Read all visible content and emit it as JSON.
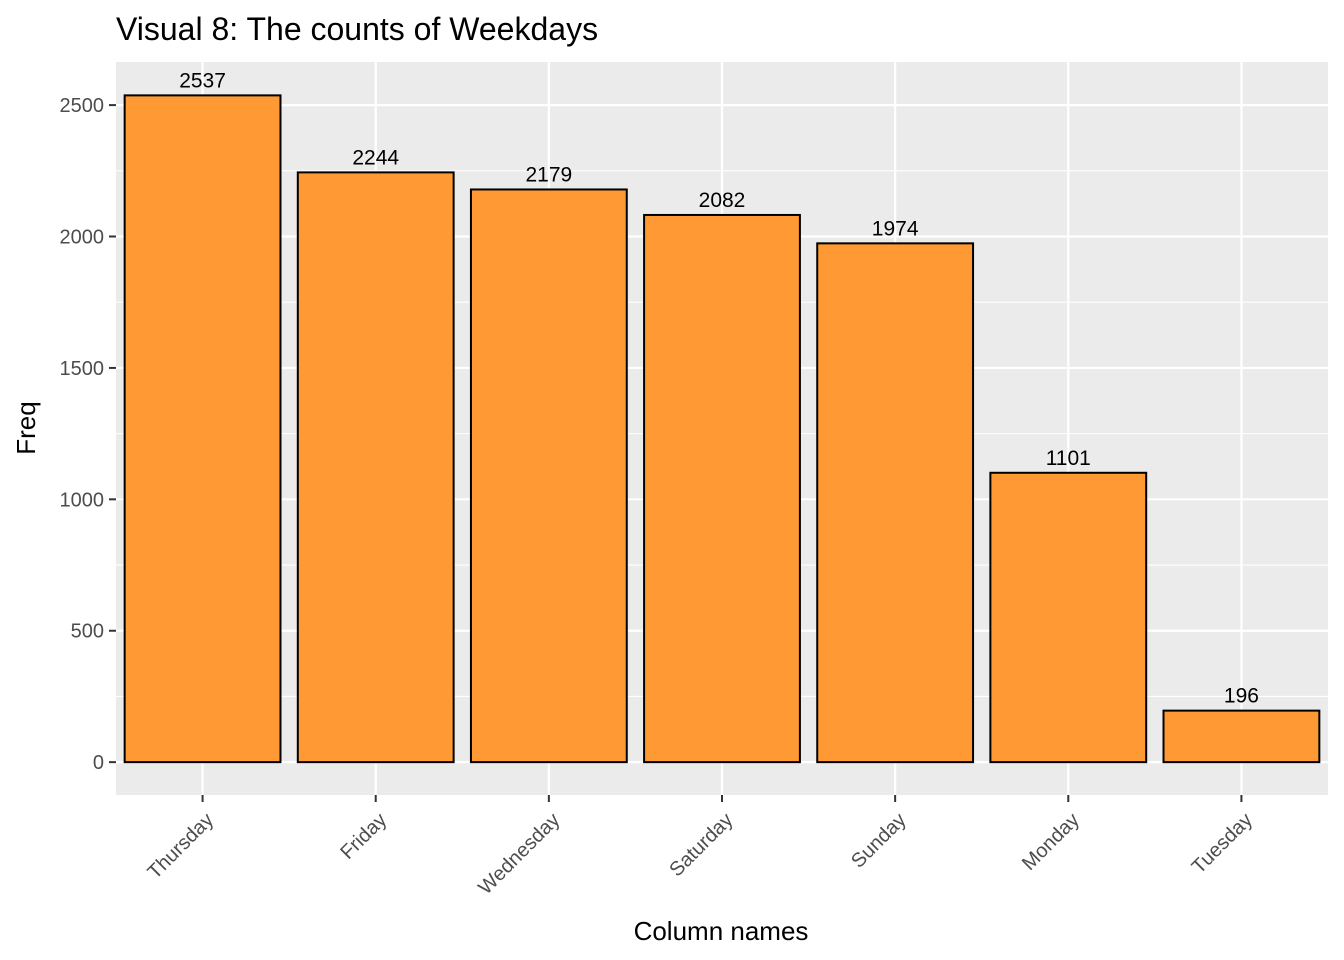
{
  "chart_data": {
    "type": "bar",
    "title": "Visual 8: The counts of Weekdays",
    "xlabel": "Column names",
    "ylabel": "Freq",
    "categories": [
      "Thursday",
      "Friday",
      "Wednesday",
      "Saturday",
      "Sunday",
      "Monday",
      "Tuesday"
    ],
    "values": [
      2537,
      2244,
      2179,
      2082,
      1974,
      1101,
      196
    ],
    "ylim": [
      -125,
      2664
    ],
    "yticks": [
      0,
      500,
      1000,
      1500,
      2000,
      2500
    ],
    "y_minor_ticks": [
      250,
      750,
      1250,
      1750,
      2250
    ],
    "grid": true,
    "legend": "none",
    "bar_color": "#FF9933",
    "bar_outline": "#000000",
    "panel_background": "#EBEBEB",
    "gridline_color": "#FFFFFF"
  }
}
